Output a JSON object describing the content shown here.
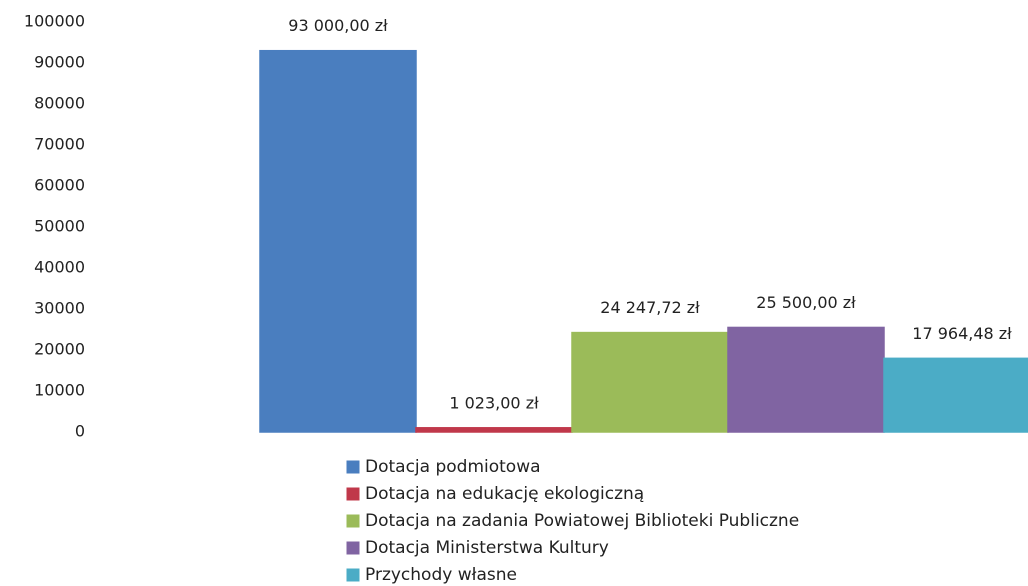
{
  "chart_data": {
    "type": "bar",
    "series": [
      {
        "name": "Dotacja podmiotowa",
        "color": "#4a7ebf",
        "values": [
          93000
        ],
        "value_labels": [
          "93 000,00 zł"
        ]
      },
      {
        "name": "Dotacja na edukację ekologiczną",
        "color": "#c0384a",
        "values": [
          1023
        ],
        "value_labels": [
          "1 023,00 zł"
        ]
      },
      {
        "name": "Dotacja na zadania Powiatowej Biblioteki Publiczne",
        "color": "#9bbb59",
        "values": [
          24247.72
        ],
        "value_labels": [
          "24 247,72 zł"
        ]
      },
      {
        "name": "Dotacja Ministerstwa Kultury",
        "color": "#8064a2",
        "values": [
          25500
        ],
        "value_labels": [
          "25 500,00 zł"
        ]
      },
      {
        "name": "Przychody własne",
        "color": "#4bacc6",
        "values": [
          17964.48
        ],
        "value_labels": [
          "17 964,48 zł"
        ]
      }
    ],
    "ylim": [
      0,
      100000
    ],
    "yticks": [
      0,
      10000,
      20000,
      30000,
      40000,
      50000,
      60000,
      70000,
      80000,
      90000,
      100000
    ],
    "grid": false,
    "legend": "bottom"
  }
}
